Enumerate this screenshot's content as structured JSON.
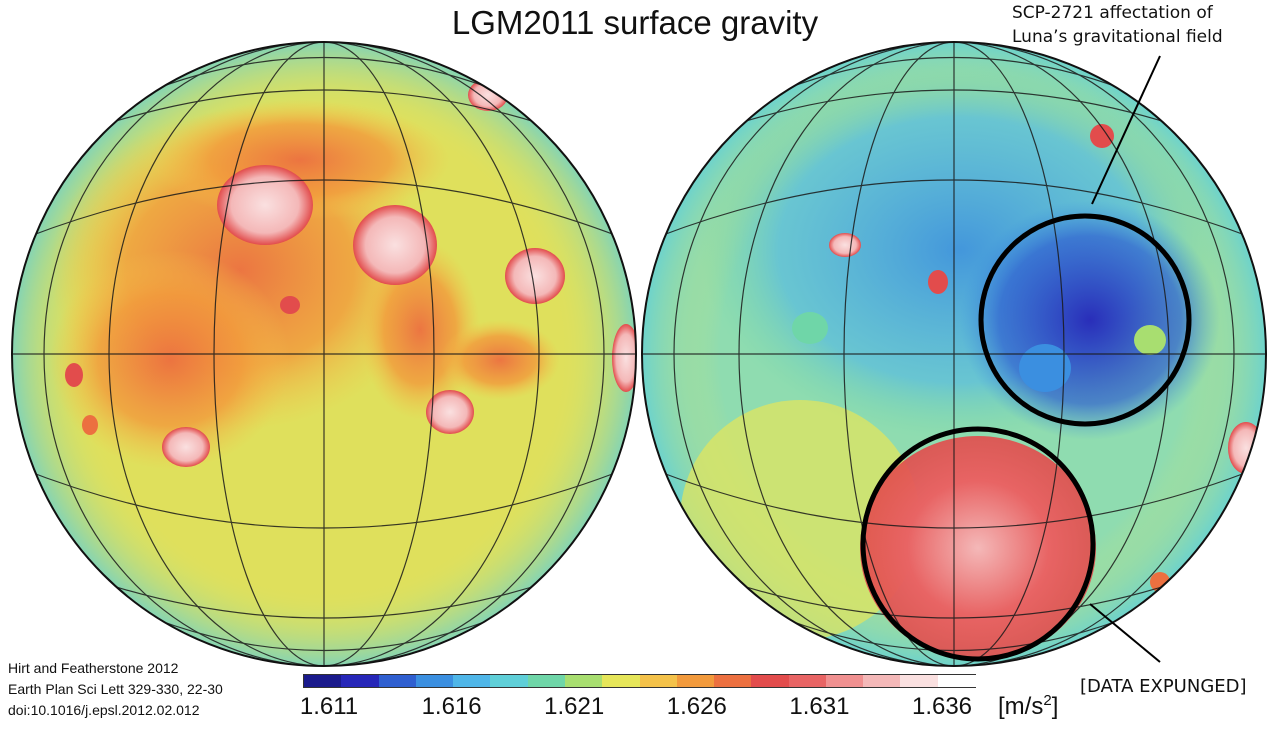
{
  "title": "LGM2011 surface gravity",
  "annotation_top": {
    "line1": "SCP-2721 affectation of",
    "line2": "Luna’s gravitational field"
  },
  "annotation_bottom": "[DATA EXPUNGED]",
  "citation": {
    "line1": "Hirt and Featherstone 2012",
    "line2": "Earth Plan Sci Lett 329-330, 22-30",
    "line3": "doi:10.1016/j.epsl.2012.02.012"
  },
  "colorbar": {
    "ticks": [
      "1.611",
      "1.616",
      "1.621",
      "1.626",
      "1.631",
      "1.636"
    ],
    "unit": "m/s",
    "unit_exponent": "2",
    "colors": [
      "#1a1a8c",
      "#2626b8",
      "#2f5fd0",
      "#3b8fe0",
      "#4fb6e8",
      "#5fcfd8",
      "#6fd6a8",
      "#a8de70",
      "#e6e65a",
      "#f4c24a",
      "#f29a3c",
      "#ec7040",
      "#e24c4c",
      "#e86464",
      "#f09090",
      "#f4b8b8",
      "#fae0e0",
      "#ffffff"
    ]
  },
  "colors": {
    "circle_stroke": "#000000",
    "graticule": "#1a1a1a"
  }
}
